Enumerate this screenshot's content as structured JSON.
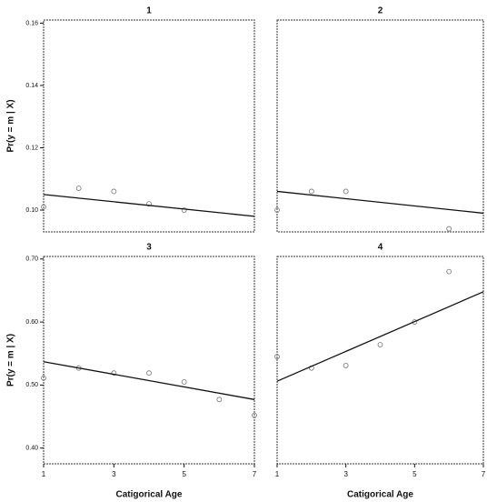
{
  "chart_data": [
    {
      "type": "scatter",
      "title": "1",
      "ylabel": "Pr(y = m | X)",
      "xlim": [
        1,
        7
      ],
      "ylim": [
        0.093,
        0.161
      ],
      "yticks": [
        {
          "value": 0.1,
          "label": "0.10"
        },
        {
          "value": 0.12,
          "label": "0.12"
        },
        {
          "value": 0.14,
          "label": "0.14"
        },
        {
          "value": 0.16,
          "label": "0.16"
        }
      ],
      "x": [
        1,
        2,
        3,
        4,
        5
      ],
      "values": [
        0.101,
        0.107,
        0.106,
        0.102,
        0.1
      ],
      "fit": {
        "x": [
          1,
          7
        ],
        "values": [
          0.105,
          0.098
        ]
      },
      "color": "#111111"
    },
    {
      "type": "scatter",
      "title": "2",
      "xlim": [
        1,
        7
      ],
      "ylim": [
        0.093,
        0.161
      ],
      "x": [
        1,
        2,
        3,
        6
      ],
      "values": [
        0.1,
        0.106,
        0.106,
        0.094
      ],
      "fit": {
        "x": [
          1,
          7
        ],
        "values": [
          0.106,
          0.099
        ]
      },
      "color": "#111111"
    },
    {
      "type": "scatter",
      "title": "3",
      "ylabel": "Pr(y = m | X)",
      "xlabel": "Catigorical Age",
      "xlim": [
        1,
        7
      ],
      "ylim": [
        0.375,
        0.704
      ],
      "yticks": [
        {
          "value": 0.4,
          "label": "0.40"
        },
        {
          "value": 0.5,
          "label": "0.50"
        },
        {
          "value": 0.6,
          "label": "0.60"
        },
        {
          "value": 0.7,
          "label": "0.70"
        }
      ],
      "xticks": [
        1,
        3,
        5,
        7
      ],
      "x": [
        1,
        2,
        3,
        4,
        5,
        6,
        7
      ],
      "values": [
        0.511,
        0.527,
        0.519,
        0.519,
        0.505,
        0.477,
        0.452
      ],
      "fit": {
        "x": [
          1,
          7
        ],
        "values": [
          0.537,
          0.477
        ]
      },
      "color": "#111111"
    },
    {
      "type": "scatter",
      "title": "4",
      "xlabel": "Catigorical Age",
      "xlim": [
        1,
        7
      ],
      "ylim": [
        0.375,
        0.704
      ],
      "xticks": [
        1,
        3,
        5,
        7
      ],
      "x": [
        1,
        2,
        3,
        4,
        5,
        6
      ],
      "values": [
        0.545,
        0.527,
        0.531,
        0.564,
        0.6,
        0.68
      ],
      "fit": {
        "x": [
          1,
          7
        ],
        "values": [
          0.506,
          0.648
        ]
      },
      "color": "#111111"
    }
  ]
}
